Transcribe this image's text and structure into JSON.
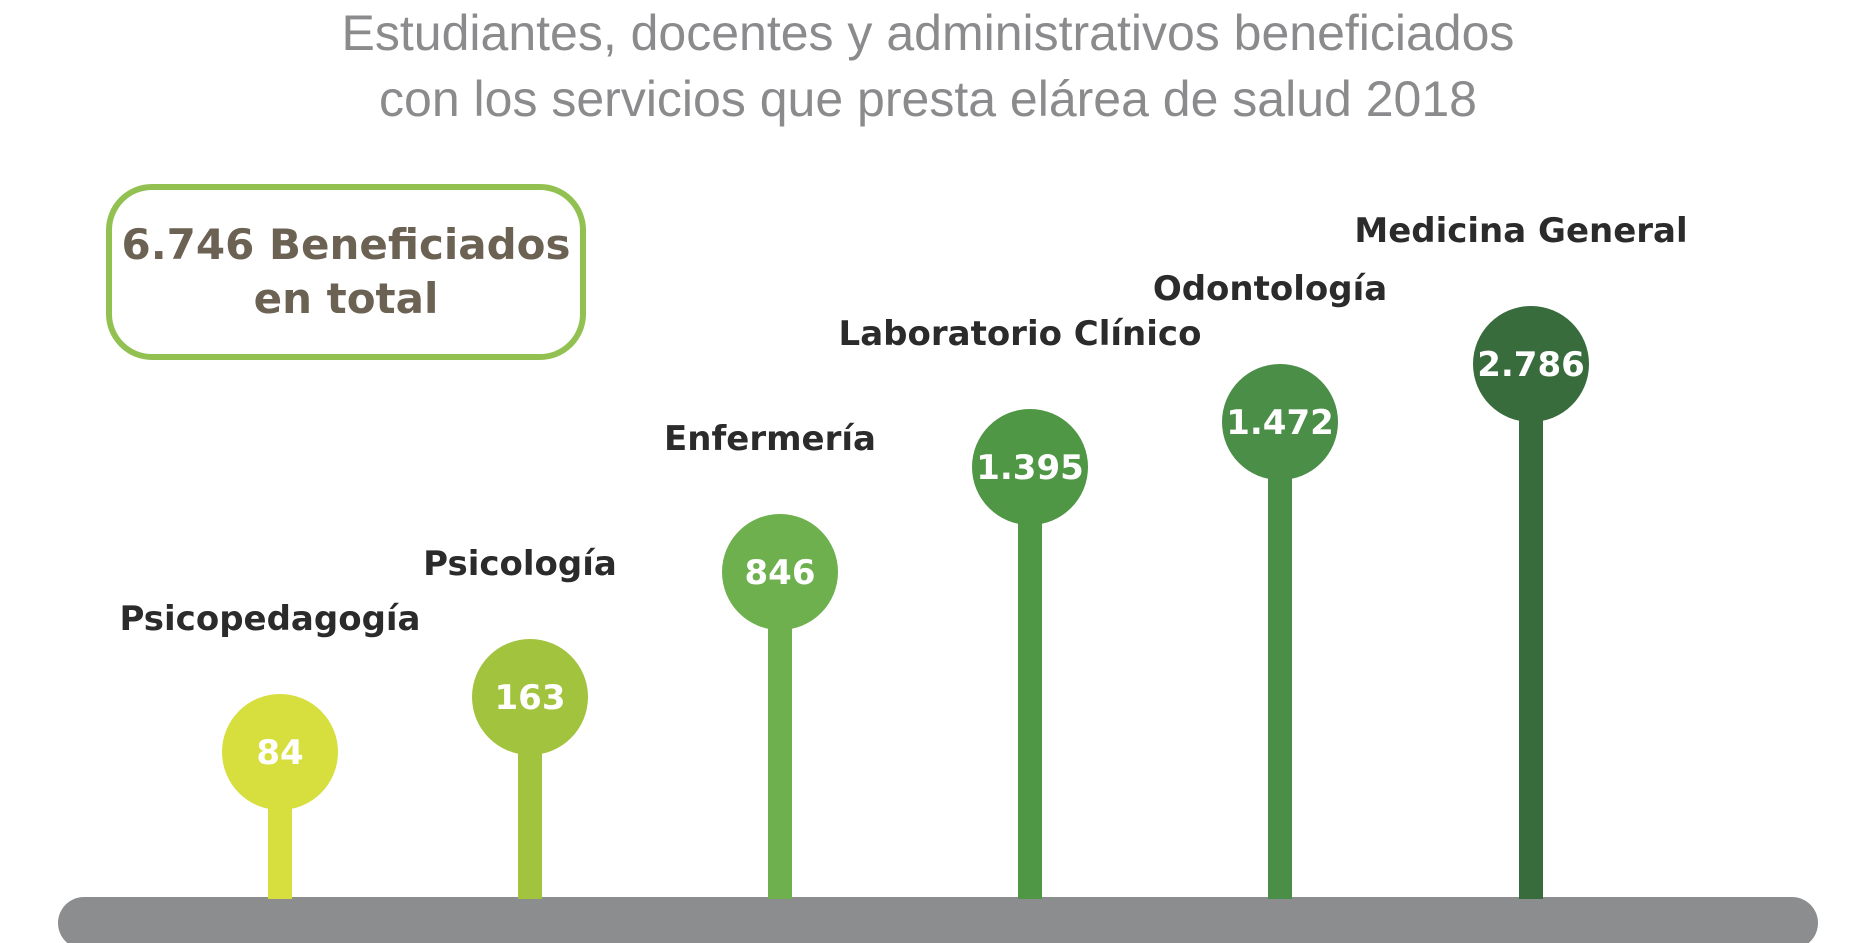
{
  "chart_data": {
    "type": "bar",
    "title": "Estudiantes, docentes y administrativos beneficiados con los servicios que presta elárea de salud 2018",
    "title_lines": [
      "Estudiantes, docentes y administrativos beneficiados",
      "con los servicios que presta elárea de salud 2018"
    ],
    "categories": [
      "Psicopedagogía",
      "Psicología",
      "Enfermería",
      "Laboratorio Clínico",
      "Odontología",
      "Medicina General"
    ],
    "values": [
      84,
      163,
      846,
      1395,
      1472,
      2786
    ],
    "value_labels": [
      "84",
      "163",
      "846",
      "1.395",
      "1.472",
      "2.786"
    ],
    "colors": [
      "#d6df3e",
      "#a2c33d",
      "#6eb04d",
      "#4f9645",
      "#4a8e47",
      "#386c3c"
    ],
    "baseline_color": "#8c8d8f",
    "annotation": {
      "line1": "6.746 Beneficiados",
      "line2": "en total"
    },
    "xlabel": "",
    "ylabel": ""
  }
}
